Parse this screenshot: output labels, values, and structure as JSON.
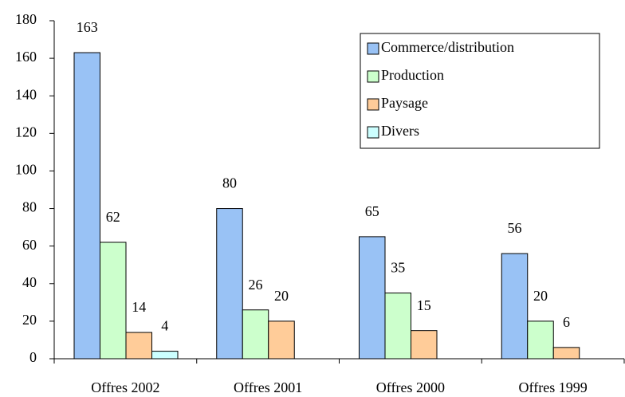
{
  "chart_data": {
    "type": "bar",
    "categories": [
      "Offres 2002",
      "Offres 2001",
      "Offres 2000",
      "Offres 1999"
    ],
    "series": [
      {
        "name": "Commerce/distribution",
        "color": "#99c2f5",
        "values": [
          163,
          80,
          65,
          56
        ]
      },
      {
        "name": "Production",
        "color": "#ccffcc",
        "values": [
          62,
          26,
          35,
          20
        ]
      },
      {
        "name": "Paysage",
        "color": "#ffcc99",
        "values": [
          14,
          20,
          15,
          6
        ]
      },
      {
        "name": "Divers",
        "color": "#ccffff",
        "values": [
          4,
          null,
          null,
          null
        ]
      }
    ],
    "ylim": [
      0,
      180
    ],
    "yticks": [
      0,
      20,
      40,
      60,
      80,
      100,
      120,
      140,
      160,
      180
    ],
    "grid": false,
    "legend": "upper right"
  }
}
